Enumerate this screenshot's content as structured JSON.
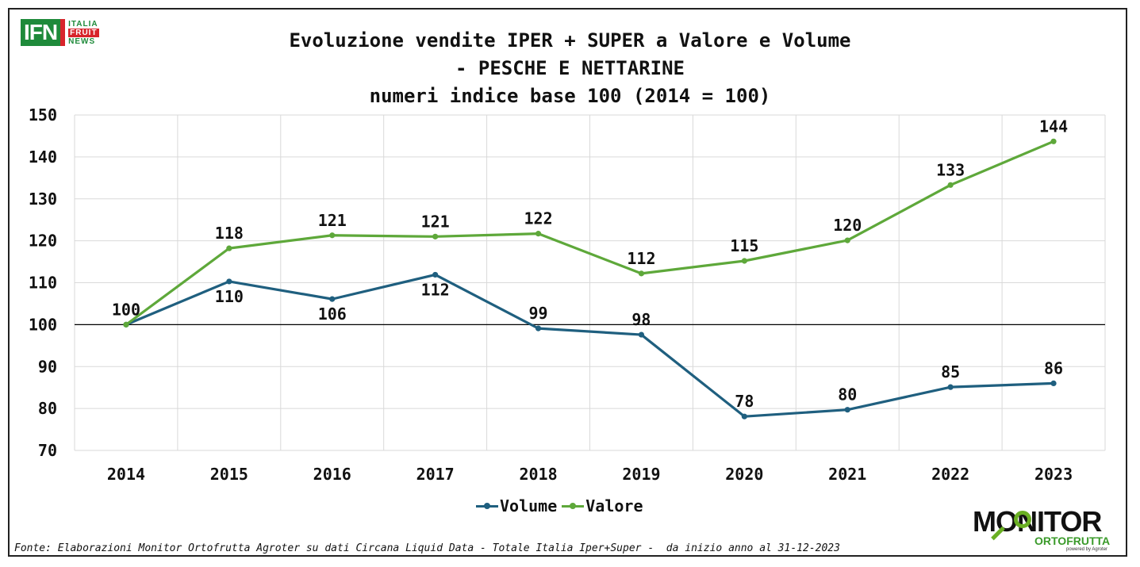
{
  "logo": {
    "brand": "IFN",
    "line1": "ITALIA",
    "line2": "FRUIT",
    "line3": "NEWS"
  },
  "title": {
    "line1": "Evoluzione vendite IPER + SUPER a Valore e Volume",
    "line2": "- PESCHE E NETTARINE",
    "line3": "numeri indice base 100 (2014 = 100)"
  },
  "colors": {
    "volume": "#1f5f7f",
    "valore": "#5ea83a",
    "grid": "#d9d9d9",
    "baseline": "#000000"
  },
  "chart_data": {
    "type": "line",
    "title": "Evoluzione vendite IPER + SUPER a Valore e Volume - PESCHE E NETTARINE numeri indice base 100 (2014 = 100)",
    "categories": [
      "2014",
      "2015",
      "2016",
      "2017",
      "2018",
      "2019",
      "2020",
      "2021",
      "2022",
      "2023"
    ],
    "yticks": [
      "70",
      "80",
      "90",
      "100",
      "110",
      "120",
      "130",
      "140",
      "150"
    ],
    "ylim": [
      70,
      150
    ],
    "baseline": 100,
    "grid": true,
    "legend_position": "bottom",
    "series": [
      {
        "name": "Volume",
        "values": [
          100,
          110.3,
          106.1,
          111.9,
          99.1,
          97.6,
          78.1,
          79.7,
          85.1,
          86.0
        ],
        "labels": [
          "",
          "110",
          "106",
          "112",
          "99",
          "98",
          "78",
          "80",
          "85",
          "86"
        ]
      },
      {
        "name": "Valore",
        "values": [
          100,
          118.2,
          121.3,
          121.0,
          121.7,
          112.2,
          115.2,
          120.1,
          133.3,
          143.7
        ],
        "labels": [
          "100",
          "118",
          "121",
          "121",
          "122",
          "112",
          "115",
          "120",
          "133",
          "144"
        ]
      }
    ]
  },
  "source": "Fonte: Elaborazioni Monitor Ortofrutta Agroter su dati Circana Liquid Data - Totale Italia Iper+Super -  da inizio anno al 31-12-2023",
  "monitor_logo": {
    "big": "MONITOR",
    "sub": "ORTOFRUTTA",
    "powered": "powered by Agroter"
  }
}
